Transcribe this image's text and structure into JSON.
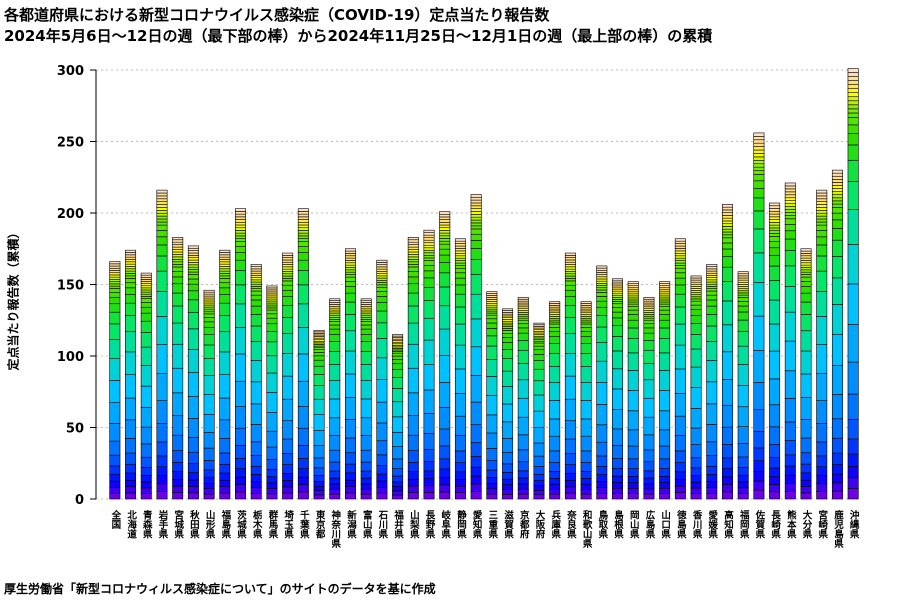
{
  "title_line1": "各都道府県における新型コロナウイルス感染症（COVID-19）定点当たり報告数",
  "title_line2": "2024年5月6日〜12日の週（最下部の棒）から2024年11月25日〜12月1日の週（最上部の棒）の累積",
  "source": "厚生労働省「新型コロナウィルス感染症について」のサイトのデータを基に作成",
  "chart_data": {
    "type": "bar",
    "stacked": true,
    "title": "各都道府県における新型コロナウイルス感染症（COVID-19）定点当たり報告数",
    "subtitle": "2024年5月6日〜12日の週（最下部の棒）から2024年11月25日〜12月1日の週（最上部の棒）の累積",
    "ylabel": "定点当たり報告数（累積）",
    "xlabel": "",
    "ylim": [
      0,
      300
    ],
    "yticks": [
      0,
      50,
      100,
      150,
      200,
      250,
      300
    ],
    "grid": true,
    "weeks": 30,
    "categories": [
      "全国",
      "北海道",
      "青森県",
      "岩手県",
      "宮城県",
      "秋田県",
      "山形県",
      "福島県",
      "茨城県",
      "栃木県",
      "群馬県",
      "埼玉県",
      "千葉県",
      "東京都",
      "神奈川県",
      "新潟県",
      "富山県",
      "石川県",
      "福井県",
      "山梨県",
      "長野県",
      "岐阜県",
      "静岡県",
      "愛知県",
      "三重県",
      "滋賀県",
      "京都府",
      "大阪府",
      "兵庫県",
      "奈良県",
      "和歌山県",
      "鳥取県",
      "島根県",
      "岡山県",
      "広島県",
      "山口県",
      "徳島県",
      "香川県",
      "愛媛県",
      "高知県",
      "福岡県",
      "佐賀県",
      "長崎県",
      "熊本県",
      "大分県",
      "宮崎県",
      "鹿児島県",
      "沖縄県"
    ],
    "values": [
      166,
      174,
      158,
      216,
      183,
      177,
      146,
      174,
      203,
      164,
      149,
      172,
      203,
      118,
      140,
      175,
      140,
      167,
      115,
      183,
      188,
      201,
      182,
      213,
      145,
      133,
      141,
      123,
      138,
      172,
      138,
      163,
      154,
      152,
      141,
      152,
      182,
      156,
      164,
      206,
      159,
      256,
      207,
      221,
      175,
      216,
      230,
      301
    ],
    "segment_colors": {
      "early_weeks": "#0000ff",
      "summer_peak": "#00bfff",
      "autumn": "#22dd00",
      "late_autumn": "#ffff00",
      "latest_weeks": "#ffd8a8"
    },
    "segment_edge_color": "#000000"
  }
}
